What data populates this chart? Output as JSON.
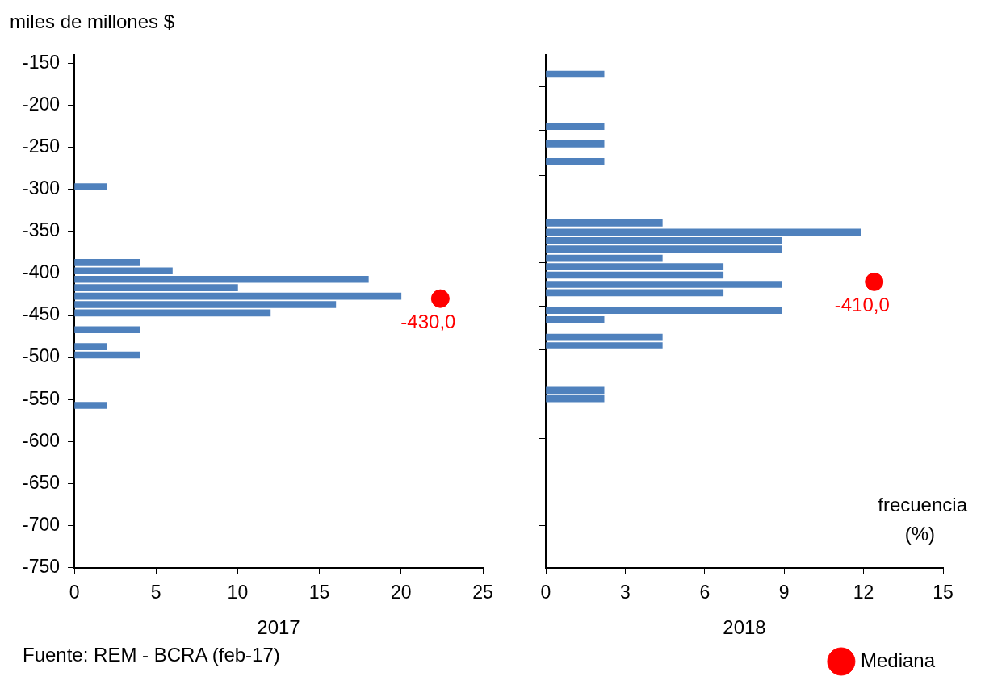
{
  "chart_data": [
    {
      "type": "bar",
      "orientation": "horizontal",
      "ylabel": "miles de millones $",
      "xlabel": "2017",
      "series": [
        {
          "color": "#4f81bd",
          "x": [
            -297,
            -387,
            -397,
            -407,
            -417,
            -427,
            -437,
            -447,
            -467,
            -487,
            -497,
            -557
          ],
          "values": [
            2,
            4,
            6,
            18,
            10,
            20,
            16,
            12,
            4,
            2,
            4,
            2
          ]
        },
        {
          "type": "scatter",
          "color": "#ff0000",
          "x": [
            -430
          ],
          "values": [
            22.4
          ]
        }
      ],
      "xlim": [
        0,
        25
      ],
      "xticks": [
        0,
        5,
        10,
        15,
        20,
        25
      ],
      "ylim": [
        -750,
        -140
      ],
      "yticks": [
        -150,
        -200,
        -250,
        -300,
        -350,
        -400,
        -450,
        -500,
        -550,
        -600,
        -650,
        -700,
        -750
      ],
      "marker": "circle",
      "legend": false,
      "annotations": [
        {
          "text": "-430,0",
          "x": 22.4,
          "y": -430
        },
        "Fuente: REM - BCRA (feb-17)"
      ]
    },
    {
      "type": "bar",
      "orientation": "horizontal",
      "xlabel": "2018",
      "series": [
        {
          "color": "#4f81bd",
          "x": [
            -163,
            -225,
            -246,
            -267,
            -340,
            -351,
            -361,
            -371,
            -382,
            -392,
            -402,
            -413,
            -423,
            -444,
            -455,
            -476,
            -486,
            -539,
            -549
          ],
          "values": [
            2.2,
            2.2,
            2.2,
            2.2,
            4.4,
            11.9,
            8.9,
            8.9,
            4.4,
            6.7,
            6.7,
            8.9,
            6.7,
            8.9,
            2.2,
            4.4,
            4.4,
            2.2,
            2.2
          ]
        },
        {
          "type": "scatter",
          "name": "Mediana",
          "color": "#ff0000",
          "x": [
            -410
          ],
          "values": [
            12.4
          ]
        }
      ],
      "xlim": [
        0,
        15
      ],
      "xticks": [
        0,
        3,
        6,
        9,
        12,
        15
      ],
      "ylim": [
        -750,
        -140
      ],
      "yticks": [
        {
          "value": -178,
          "label": null
        },
        {
          "value": -230,
          "label": null
        },
        {
          "value": -283,
          "label": null
        },
        {
          "value": -335,
          "label": null
        },
        {
          "value": -387,
          "label": null
        },
        {
          "value": -439,
          "label": null
        },
        {
          "value": -491,
          "label": null
        },
        {
          "value": -544,
          "label": null
        },
        {
          "value": -596,
          "label": null
        },
        {
          "value": -648,
          "label": null
        },
        {
          "value": -700,
          "label": null
        }
      ],
      "tick_labels": "x",
      "marker": "circle",
      "legend": "bottom right",
      "annotations": [
        {
          "text": "-410,0",
          "x": 12.4,
          "y": -410
        },
        "frecuencia (%)"
      ]
    }
  ]
}
